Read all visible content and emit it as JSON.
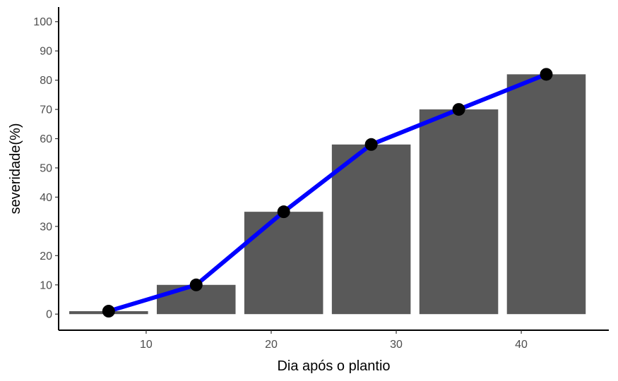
{
  "chart_data": {
    "type": "bar",
    "xlabel": "Dia após o plantio",
    "ylabel": "severidade(%)",
    "xlim": [
      3,
      47
    ],
    "ylim": [
      -5.5,
      105
    ],
    "x_ticks": [
      10,
      20,
      30,
      40
    ],
    "y_ticks": [
      0,
      10,
      20,
      30,
      40,
      50,
      60,
      70,
      80,
      90,
      100
    ],
    "grid": false,
    "legend": "none",
    "bar_width_days": 6.3,
    "bars": {
      "x": [
        7,
        14,
        21,
        28,
        35,
        42
      ],
      "values": [
        1,
        10,
        35,
        58,
        70,
        82
      ]
    },
    "line": {
      "x": [
        7,
        14,
        21,
        28,
        35,
        42
      ],
      "values": [
        1,
        10,
        35,
        58,
        70,
        82
      ]
    },
    "colors": {
      "bars": "#595959",
      "line": "#0000ff",
      "points": "#000000",
      "axis": "#000000"
    }
  }
}
